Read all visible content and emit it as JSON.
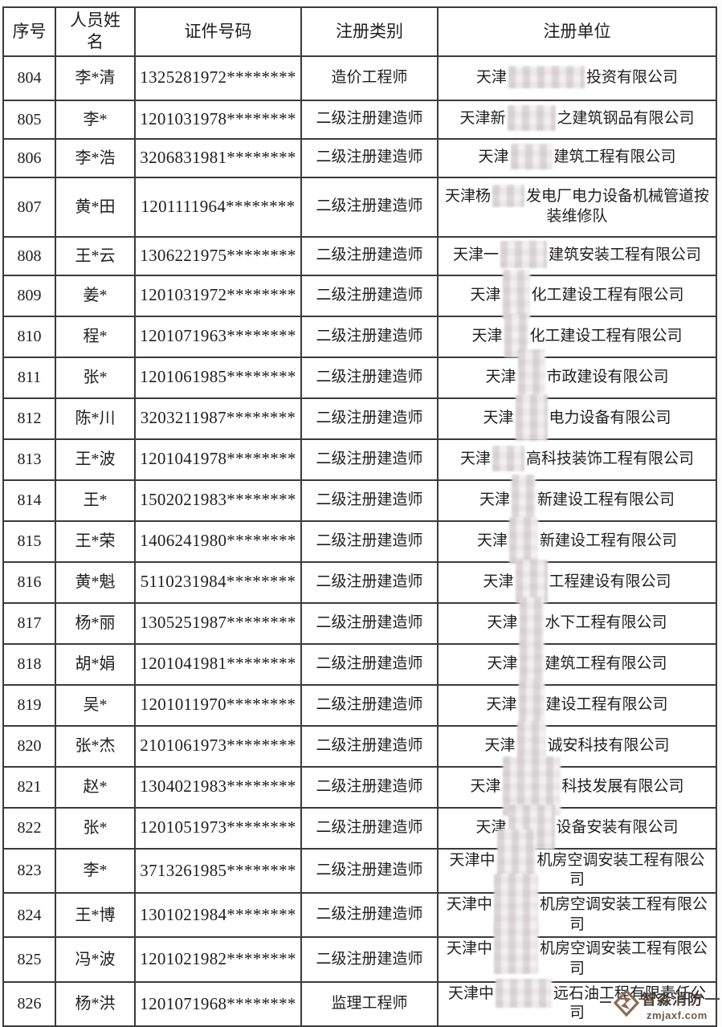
{
  "table": {
    "headers": [
      "序号",
      "人员姓名",
      "证件号码",
      "注册类别",
      "注册单位"
    ],
    "rows": [
      {
        "no": "804",
        "name": "李*清",
        "id": "1325281972********",
        "category": "造价工程师",
        "company_pre": "天津",
        "company_post": "投资有限公司",
        "censor": {
          "w": 95,
          "h": 28
        }
      },
      {
        "no": "805",
        "name": "李*",
        "id": "1201031978********",
        "category": "二级注册建造师",
        "company_pre": "天津新",
        "company_post": "之建筑钢品有限公司",
        "censor": {
          "w": 60,
          "h": 32
        }
      },
      {
        "no": "806",
        "name": "李*浩",
        "id": "3206831981********",
        "category": "二级注册建造师",
        "company_pre": "天津",
        "company_post": "建筑工程有限公司",
        "censor": {
          "w": 52,
          "h": 32
        }
      },
      {
        "no": "807",
        "name": "黄*田",
        "id": "1201111964********",
        "category": "二级注册建造师",
        "company_pre": "天津杨",
        "company_post": "发电厂电力设备机械管道按装维修队",
        "censor": {
          "w": 40,
          "h": 28
        }
      },
      {
        "no": "808",
        "name": "王*云",
        "id": "1306221975********",
        "category": "二级注册建造师",
        "company_pre": "天津一",
        "company_post": "建筑安装工程有限公司",
        "censor": {
          "w": 58,
          "h": 34
        }
      },
      {
        "no": "809",
        "name": "姜*",
        "id": "1201031972********",
        "category": "二级注册建造师",
        "company_pre": "天津",
        "company_post": "化工建设工程有限公司",
        "censor": {
          "w": 34,
          "h": 62
        }
      },
      {
        "no": "810",
        "name": "程*",
        "id": "1201071963********",
        "category": "二级注册建造师",
        "company_pre": "天津",
        "company_post": "化工建设工程有限公司",
        "censor": {
          "w": 30,
          "h": 54
        }
      },
      {
        "no": "811",
        "name": "张*",
        "id": "1201061985********",
        "category": "二级注册建造师",
        "company_pre": "天津",
        "company_post": "市政建设有限公司",
        "censor": {
          "w": 34,
          "h": 68
        }
      },
      {
        "no": "812",
        "name": "陈*川",
        "id": "3203211987********",
        "category": "二级注册建造师",
        "company_pre": "天津",
        "company_post": "电力设备有限公司",
        "censor": {
          "w": 40,
          "h": 58
        }
      },
      {
        "no": "813",
        "name": "王*波",
        "id": "1201041978********",
        "category": "二级注册建造师",
        "company_pre": "天津",
        "company_post": "高科技装饰工程有限公司",
        "censor": {
          "w": 40,
          "h": 32
        }
      },
      {
        "no": "814",
        "name": "王*",
        "id": "1502021983********",
        "category": "二级注册建造师",
        "company_pre": "天津",
        "company_post": "新建设工程有限公司",
        "censor": {
          "w": 30,
          "h": 62
        }
      },
      {
        "no": "815",
        "name": "王*荣",
        "id": "1406241980********",
        "category": "二级注册建造师",
        "company_pre": "天津",
        "company_post": "新建设工程有限公司",
        "censor": {
          "w": 36,
          "h": 58
        }
      },
      {
        "no": "816",
        "name": "黄*魁",
        "id": "5110231984********",
        "category": "二级注册建造师",
        "company_pre": "天津",
        "company_post": "工程建设有限公司",
        "censor": {
          "w": 40,
          "h": 54
        }
      },
      {
        "no": "817",
        "name": "杨*丽",
        "id": "1305251987********",
        "category": "二级注册建造师",
        "company_pre": "天津",
        "company_post": "水下工程有限公司",
        "censor": {
          "w": 30,
          "h": 62
        }
      },
      {
        "no": "818",
        "name": "胡*娟",
        "id": "1201041981********",
        "category": "二级注册建造师",
        "company_pre": "天津",
        "company_post": "建筑工程有限公司",
        "censor": {
          "w": 30,
          "h": 58
        }
      },
      {
        "no": "819",
        "name": "吴*",
        "id": "1201011970********",
        "category": "二级注册建造师",
        "company_pre": "天津",
        "company_post": "建设工程有限公司",
        "censor": {
          "w": 32,
          "h": 58
        }
      },
      {
        "no": "820",
        "name": "张*杰",
        "id": "2101061973********",
        "category": "二级注册建造师",
        "company_pre": "天津",
        "company_post": "诚安科技有限公司",
        "censor": {
          "w": 36,
          "h": 60
        }
      },
      {
        "no": "821",
        "name": "赵*",
        "id": "1304021983********",
        "category": "二级注册建造师",
        "company_pre": "天津",
        "company_post": "科技发展有限公司",
        "censor": {
          "w": 72,
          "h": 74
        }
      },
      {
        "no": "822",
        "name": "张*",
        "id": "1201051973********",
        "category": "二级注册建造师",
        "company_pre": "天津",
        "company_post": "设备安装有限公司",
        "censor": {
          "w": 58,
          "h": 56
        }
      },
      {
        "no": "823",
        "name": "李*",
        "id": "3713261985********",
        "category": "二级注册建造师",
        "company_pre": "天津中",
        "company_post": "机房空调安装工程有限公司",
        "censor": {
          "w": 48,
          "h": 76
        }
      },
      {
        "no": "824",
        "name": "王*博",
        "id": "1301021984********",
        "category": "二级注册建造师",
        "company_pre": "天津中",
        "company_post": "机房空调安装工程有限公司",
        "censor": {
          "w": 55,
          "h": 76
        }
      },
      {
        "no": "825",
        "name": "冯*波",
        "id": "1201021982********",
        "category": "二级注册建造师",
        "company_pre": "天津中",
        "company_post": "机房空调安装工程有限公司",
        "censor": {
          "w": 55,
          "h": 64
        }
      },
      {
        "no": "826",
        "name": "杨*洪",
        "id": "1201071968********",
        "category": "监理工程师",
        "company_pre": "天津中",
        "company_post": "远石油工程有限责任公司",
        "censor": {
          "w": 70,
          "h": 36
        }
      }
    ]
  },
  "watermark": {
    "title": "智淼消防",
    "url": "zmjaxf.com",
    "brand_color": "#8a6c55"
  }
}
